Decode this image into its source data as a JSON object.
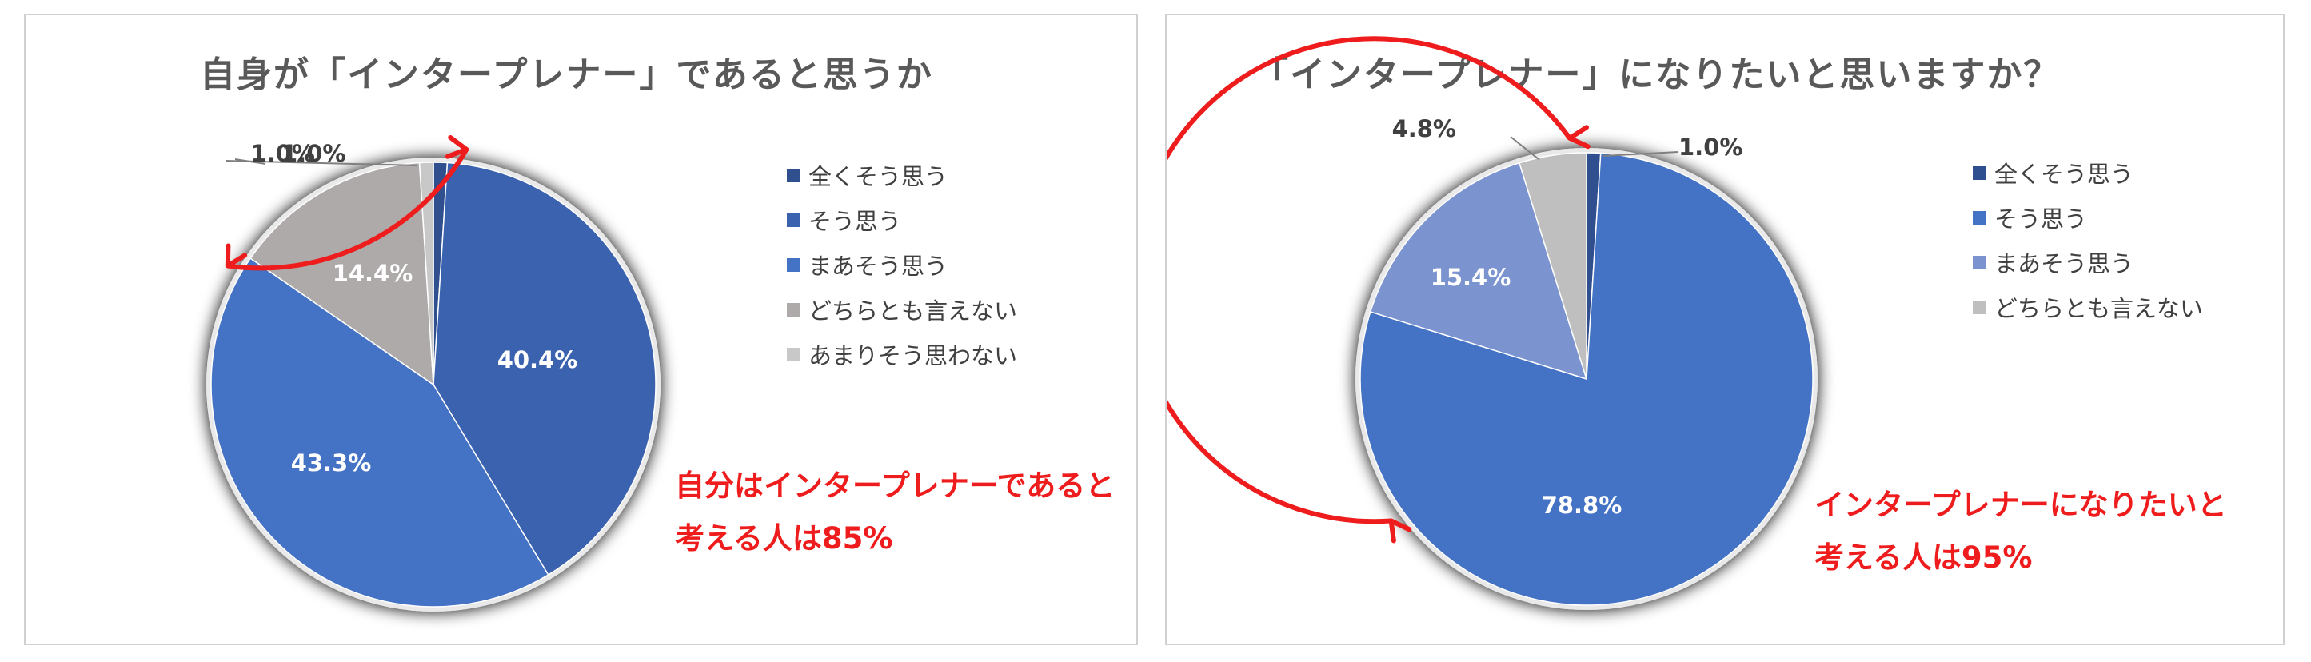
{
  "chart_data": [
    {
      "type": "pie",
      "title": "自身が「インタープレナー」であると思うか",
      "categories": [
        "全くそう思う",
        "そう思う",
        "まあそう思う",
        "どちらとも言えない",
        "あまりそう思わない"
      ],
      "values": [
        1.0,
        40.4,
        43.3,
        14.4,
        1.0
      ],
      "value_labels": [
        "1.0%",
        "40.4%",
        "43.3%",
        "14.4%",
        "1.0%"
      ],
      "colors": [
        "#2f4f8f",
        "#3a62ae",
        "#4472c4",
        "#aeaaaa",
        "#c8c8c8"
      ],
      "label_colors": [
        "#404040",
        "#ffffff",
        "#ffffff",
        "#ffffff",
        "#404040"
      ],
      "legend_position": "right",
      "annotation": [
        "自分はインタープレナーであると",
        "考える人は85%"
      ]
    },
    {
      "type": "pie",
      "title": "「インタープレナー」になりたいと思いますか？",
      "categories": [
        "全くそう思う",
        "そう思う",
        "まあそう思う",
        "どちらとも言えない"
      ],
      "values": [
        1.0,
        78.8,
        15.4,
        4.8
      ],
      "value_labels": [
        "1.0%",
        "78.8%",
        "15.4%",
        "4.8%"
      ],
      "colors": [
        "#2f4f8f",
        "#4472c4",
        "#7b93cf",
        "#bfbfbf"
      ],
      "label_colors": [
        "#404040",
        "#ffffff",
        "#ffffff",
        "#404040"
      ],
      "legend_position": "right",
      "annotation": [
        "インタープレナーになりたいと",
        "考える人は95%"
      ]
    }
  ]
}
